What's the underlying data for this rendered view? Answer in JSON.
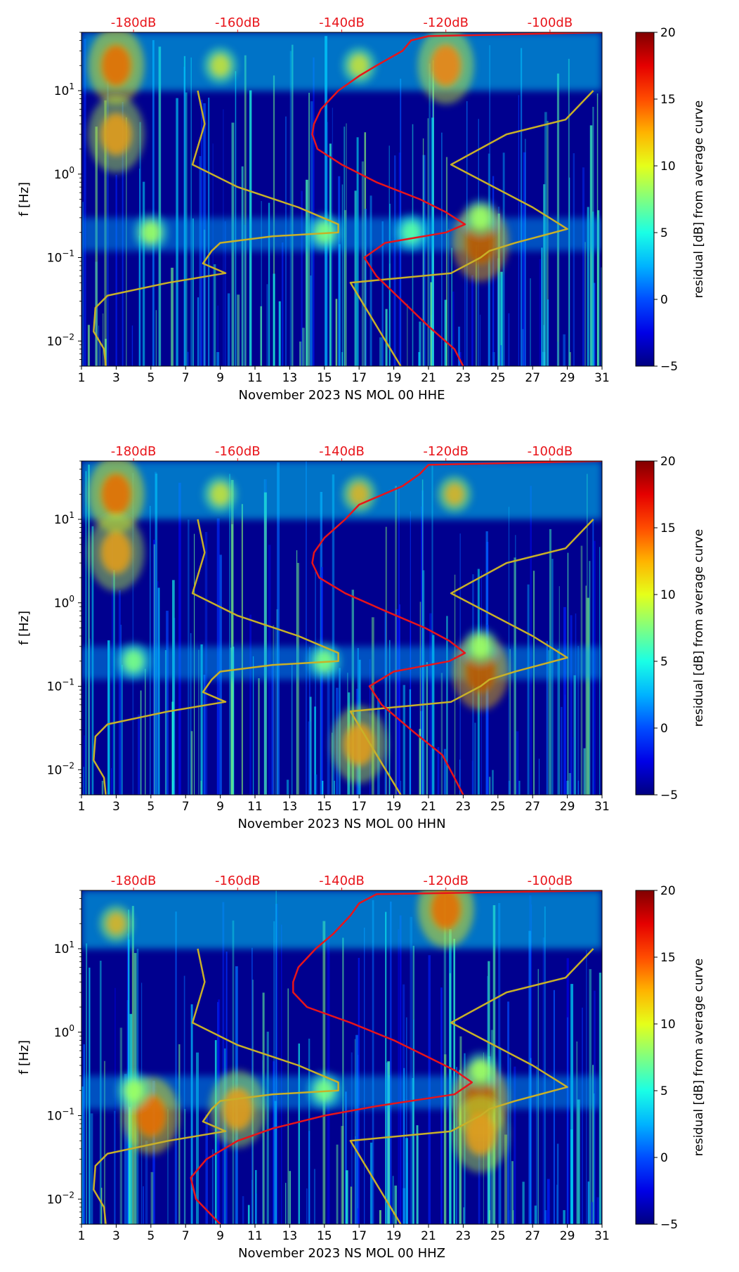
{
  "chart_data": [
    {
      "type": "heatmap",
      "xlabel": "November 2023 NS MOL 00 HHE",
      "ylabel": "f [Hz]",
      "x_ticks": [
        "1",
        "3",
        "5",
        "7",
        "9",
        "11",
        "13",
        "15",
        "17",
        "19",
        "21",
        "23",
        "25",
        "27",
        "29",
        "31"
      ],
      "x_range": [
        1,
        31
      ],
      "y_ticks": [
        "10−2",
        "10−1",
        "100",
        "101"
      ],
      "y_scale": "log",
      "y_range_hz": [
        0.005,
        50
      ],
      "top_labels": [
        "-180dB",
        "-160dB",
        "-140dB",
        "-120dB",
        "-100dB"
      ],
      "colorbar": {
        "label": "residual [dB] from average curve",
        "ticks": [
          "−5",
          "0",
          "5",
          "10",
          "15",
          "20"
        ],
        "range": [
          -5,
          20
        ],
        "colormap": "jet"
      },
      "hot_spots": [
        {
          "day": 3,
          "f": 20,
          "value": 18
        },
        {
          "day": 3,
          "f": 3,
          "value": 15
        },
        {
          "day": 17,
          "f": 20,
          "value": 12
        },
        {
          "day": 9,
          "f": 20,
          "value": 12
        },
        {
          "day": 22,
          "f": 20,
          "value": 16
        },
        {
          "day": 24,
          "f": 0.15,
          "value": 20
        },
        {
          "day": 24,
          "f": 0.3,
          "value": 10
        },
        {
          "day": 5,
          "f": 0.2,
          "value": 10
        },
        {
          "day": 15,
          "f": 0.2,
          "value": 9
        },
        {
          "day": 20,
          "f": 0.2,
          "value": 8
        }
      ],
      "red_curve": [
        {
          "f": 50,
          "day": 31
        },
        {
          "f": 45,
          "day": 21
        },
        {
          "f": 40,
          "day": 20
        },
        {
          "f": 30,
          "day": 19.5
        },
        {
          "f": 20,
          "day": 18
        },
        {
          "f": 15,
          "day": 17
        },
        {
          "f": 10,
          "day": 15.8
        },
        {
          "f": 6,
          "day": 14.8
        },
        {
          "f": 4,
          "day": 14.4
        },
        {
          "f": 3,
          "day": 14.3
        },
        {
          "f": 2,
          "day": 14.6
        },
        {
          "f": 1.3,
          "day": 16
        },
        {
          "f": 0.8,
          "day": 18
        },
        {
          "f": 0.5,
          "day": 20.5
        },
        {
          "f": 0.35,
          "day": 22
        },
        {
          "f": 0.25,
          "day": 23.1
        },
        {
          "f": 0.2,
          "day": 22
        },
        {
          "f": 0.15,
          "day": 18.5
        },
        {
          "f": 0.1,
          "day": 17.3
        },
        {
          "f": 0.06,
          "day": 18
        },
        {
          "f": 0.03,
          "day": 19.5
        },
        {
          "f": 0.015,
          "day": 21
        },
        {
          "f": 0.008,
          "day": 22.5
        },
        {
          "f": 0.005,
          "day": 23
        }
      ],
      "yellow_curve_left": [
        {
          "f": 10,
          "day": 7.7
        },
        {
          "f": 4,
          "day": 8.1
        },
        {
          "f": 1.3,
          "day": 7.4
        },
        {
          "f": 0.7,
          "day": 10
        },
        {
          "f": 0.4,
          "day": 13.5
        },
        {
          "f": 0.25,
          "day": 15.8
        },
        {
          "f": 0.2,
          "day": 15.8
        },
        {
          "f": 0.18,
          "day": 12
        },
        {
          "f": 0.15,
          "day": 9
        },
        {
          "f": 0.12,
          "day": 8.5
        },
        {
          "f": 0.085,
          "day": 8
        },
        {
          "f": 0.065,
          "day": 9.3
        },
        {
          "f": 0.05,
          "day": 6
        },
        {
          "f": 0.035,
          "day": 2.5
        },
        {
          "f": 0.025,
          "day": 1.8
        },
        {
          "f": 0.013,
          "day": 1.7
        },
        {
          "f": 0.008,
          "day": 2.3
        },
        {
          "f": 0.005,
          "day": 2.4
        }
      ],
      "yellow_curve_right": [
        {
          "f": 10,
          "day": 30.5
        },
        {
          "f": 4.5,
          "day": 28.9
        },
        {
          "f": 3,
          "day": 25.5
        },
        {
          "f": 1.3,
          "day": 22.3
        },
        {
          "f": 0.4,
          "day": 27
        },
        {
          "f": 0.22,
          "day": 29
        },
        {
          "f": 0.15,
          "day": 26
        },
        {
          "f": 0.12,
          "day": 24.5
        },
        {
          "f": 0.1,
          "day": 24
        },
        {
          "f": 0.065,
          "day": 22.3
        },
        {
          "f": 0.05,
          "day": 16.5
        },
        {
          "f": 0.005,
          "day": 19.4
        }
      ]
    },
    {
      "type": "heatmap",
      "xlabel": "November 2023 NS MOL 00 HHN",
      "ylabel": "f [Hz]",
      "x_ticks": [
        "1",
        "3",
        "5",
        "7",
        "9",
        "11",
        "13",
        "15",
        "17",
        "19",
        "21",
        "23",
        "25",
        "27",
        "29",
        "31"
      ],
      "x_range": [
        1,
        31
      ],
      "y_ticks": [
        "10−2",
        "10−1",
        "100",
        "101"
      ],
      "y_scale": "log",
      "y_range_hz": [
        0.005,
        50
      ],
      "top_labels": [
        "-180dB",
        "-160dB",
        "-140dB",
        "-120dB",
        "-100dB"
      ],
      "colorbar": {
        "label": "residual [dB] from average curve",
        "ticks": [
          "−5",
          "0",
          "5",
          "10",
          "15",
          "20"
        ],
        "range": [
          -5,
          20
        ],
        "colormap": "jet"
      },
      "hot_spots": [
        {
          "day": 3,
          "f": 20,
          "value": 18
        },
        {
          "day": 3,
          "f": 4,
          "value": 15
        },
        {
          "day": 17,
          "f": 20,
          "value": 14
        },
        {
          "day": 9,
          "f": 20,
          "value": 12
        },
        {
          "day": 22.5,
          "f": 20,
          "value": 14
        },
        {
          "day": 24,
          "f": 0.15,
          "value": 20
        },
        {
          "day": 24,
          "f": 0.3,
          "value": 10
        },
        {
          "day": 4,
          "f": 0.2,
          "value": 9
        },
        {
          "day": 15,
          "f": 0.2,
          "value": 9
        },
        {
          "day": 17,
          "f": 0.02,
          "value": 15
        }
      ],
      "red_curve": [
        {
          "f": 50,
          "day": 31
        },
        {
          "f": 45,
          "day": 21
        },
        {
          "f": 35,
          "day": 20.5
        },
        {
          "f": 25,
          "day": 19.5
        },
        {
          "f": 15,
          "day": 17
        },
        {
          "f": 10,
          "day": 16.2
        },
        {
          "f": 6,
          "day": 15
        },
        {
          "f": 4,
          "day": 14.4
        },
        {
          "f": 3,
          "day": 14.3
        },
        {
          "f": 2,
          "day": 14.7
        },
        {
          "f": 1.3,
          "day": 16.2
        },
        {
          "f": 0.8,
          "day": 18.5
        },
        {
          "f": 0.5,
          "day": 20.8
        },
        {
          "f": 0.35,
          "day": 22.2
        },
        {
          "f": 0.25,
          "day": 23.1
        },
        {
          "f": 0.2,
          "day": 22.2
        },
        {
          "f": 0.15,
          "day": 19
        },
        {
          "f": 0.1,
          "day": 17.6
        },
        {
          "f": 0.06,
          "day": 18.3
        },
        {
          "f": 0.03,
          "day": 20
        },
        {
          "f": 0.015,
          "day": 21.8
        },
        {
          "f": 0.008,
          "day": 22.5
        },
        {
          "f": 0.005,
          "day": 23
        }
      ],
      "yellow_curve_left": [
        {
          "f": 10,
          "day": 7.7
        },
        {
          "f": 4,
          "day": 8.1
        },
        {
          "f": 1.3,
          "day": 7.4
        },
        {
          "f": 0.7,
          "day": 10
        },
        {
          "f": 0.4,
          "day": 13.5
        },
        {
          "f": 0.25,
          "day": 15.8
        },
        {
          "f": 0.2,
          "day": 15.8
        },
        {
          "f": 0.18,
          "day": 12
        },
        {
          "f": 0.15,
          "day": 9
        },
        {
          "f": 0.12,
          "day": 8.5
        },
        {
          "f": 0.085,
          "day": 8
        },
        {
          "f": 0.065,
          "day": 9.3
        },
        {
          "f": 0.05,
          "day": 6
        },
        {
          "f": 0.035,
          "day": 2.5
        },
        {
          "f": 0.025,
          "day": 1.8
        },
        {
          "f": 0.013,
          "day": 1.7
        },
        {
          "f": 0.008,
          "day": 2.3
        },
        {
          "f": 0.005,
          "day": 2.4
        }
      ],
      "yellow_curve_right": [
        {
          "f": 10,
          "day": 30.5
        },
        {
          "f": 4.5,
          "day": 28.9
        },
        {
          "f": 3,
          "day": 25.5
        },
        {
          "f": 1.3,
          "day": 22.3
        },
        {
          "f": 0.4,
          "day": 27
        },
        {
          "f": 0.22,
          "day": 29
        },
        {
          "f": 0.15,
          "day": 26
        },
        {
          "f": 0.12,
          "day": 24.5
        },
        {
          "f": 0.1,
          "day": 24
        },
        {
          "f": 0.065,
          "day": 22.3
        },
        {
          "f": 0.05,
          "day": 16.5
        },
        {
          "f": 0.005,
          "day": 19.4
        }
      ]
    },
    {
      "type": "heatmap",
      "xlabel": "November 2023 NS MOL 00 HHZ",
      "ylabel": "f [Hz]",
      "x_ticks": [
        "1",
        "3",
        "5",
        "7",
        "9",
        "11",
        "13",
        "15",
        "17",
        "19",
        "21",
        "23",
        "25",
        "27",
        "29",
        "31"
      ],
      "x_range": [
        1,
        31
      ],
      "y_ticks": [
        "10−2",
        "10−1",
        "100",
        "101"
      ],
      "y_scale": "log",
      "y_range_hz": [
        0.005,
        50
      ],
      "top_labels": [
        "-180dB",
        "-160dB",
        "-140dB",
        "-120dB",
        "-100dB"
      ],
      "colorbar": {
        "label": "residual [dB] from average curve",
        "ticks": [
          "−5",
          "0",
          "5",
          "10",
          "15",
          "20"
        ],
        "range": [
          -5,
          20
        ],
        "colormap": "jet"
      },
      "hot_spots": [
        {
          "day": 3,
          "f": 20,
          "value": 14
        },
        {
          "day": 22,
          "f": 30,
          "value": 18
        },
        {
          "day": 24,
          "f": 0.15,
          "value": 20
        },
        {
          "day": 24,
          "f": 0.06,
          "value": 15
        },
        {
          "day": 24,
          "f": 0.35,
          "value": 10
        },
        {
          "day": 5,
          "f": 0.1,
          "value": 18
        },
        {
          "day": 10,
          "f": 0.12,
          "value": 15
        },
        {
          "day": 4,
          "f": 0.2,
          "value": 10
        },
        {
          "day": 15,
          "f": 0.2,
          "value": 9
        }
      ],
      "red_curve": [
        {
          "f": 50,
          "day": 31
        },
        {
          "f": 45,
          "day": 18
        },
        {
          "f": 35,
          "day": 17
        },
        {
          "f": 25,
          "day": 16.5
        },
        {
          "f": 15,
          "day": 15.5
        },
        {
          "f": 10,
          "day": 14.5
        },
        {
          "f": 6,
          "day": 13.5
        },
        {
          "f": 4,
          "day": 13.2
        },
        {
          "f": 3,
          "day": 13.2
        },
        {
          "f": 2,
          "day": 14
        },
        {
          "f": 1.3,
          "day": 16.5
        },
        {
          "f": 0.8,
          "day": 19
        },
        {
          "f": 0.5,
          "day": 21
        },
        {
          "f": 0.35,
          "day": 22.5
        },
        {
          "f": 0.25,
          "day": 23.5
        },
        {
          "f": 0.18,
          "day": 22.5
        },
        {
          "f": 0.13,
          "day": 18
        },
        {
          "f": 0.1,
          "day": 15
        },
        {
          "f": 0.07,
          "day": 12
        },
        {
          "f": 0.05,
          "day": 10
        },
        {
          "f": 0.03,
          "day": 8.2
        },
        {
          "f": 0.018,
          "day": 7.3
        },
        {
          "f": 0.01,
          "day": 7.6
        },
        {
          "f": 0.005,
          "day": 9
        }
      ],
      "yellow_curve_left": [
        {
          "f": 10,
          "day": 7.7
        },
        {
          "f": 4,
          "day": 8.1
        },
        {
          "f": 1.3,
          "day": 7.4
        },
        {
          "f": 0.7,
          "day": 10
        },
        {
          "f": 0.4,
          "day": 13.5
        },
        {
          "f": 0.25,
          "day": 15.8
        },
        {
          "f": 0.2,
          "day": 15.8
        },
        {
          "f": 0.18,
          "day": 12
        },
        {
          "f": 0.15,
          "day": 9
        },
        {
          "f": 0.12,
          "day": 8.5
        },
        {
          "f": 0.085,
          "day": 8
        },
        {
          "f": 0.065,
          "day": 9.3
        },
        {
          "f": 0.05,
          "day": 6
        },
        {
          "f": 0.035,
          "day": 2.5
        },
        {
          "f": 0.025,
          "day": 1.8
        },
        {
          "f": 0.013,
          "day": 1.7
        },
        {
          "f": 0.008,
          "day": 2.3
        },
        {
          "f": 0.005,
          "day": 2.4
        }
      ],
      "yellow_curve_right": [
        {
          "f": 10,
          "day": 30.5
        },
        {
          "f": 4.5,
          "day": 28.9
        },
        {
          "f": 3,
          "day": 25.5
        },
        {
          "f": 1.3,
          "day": 22.3
        },
        {
          "f": 0.4,
          "day": 27
        },
        {
          "f": 0.22,
          "day": 29
        },
        {
          "f": 0.15,
          "day": 26
        },
        {
          "f": 0.12,
          "day": 24.5
        },
        {
          "f": 0.1,
          "day": 24
        },
        {
          "f": 0.065,
          "day": 22.3
        },
        {
          "f": 0.05,
          "day": 16.5
        },
        {
          "f": 0.005,
          "day": 19.4
        }
      ]
    }
  ],
  "colors": {
    "red_curve": "#e8141a",
    "yellow_curve": "#c8b028",
    "top_label_color": "#e8141a",
    "background": "#00008f"
  }
}
